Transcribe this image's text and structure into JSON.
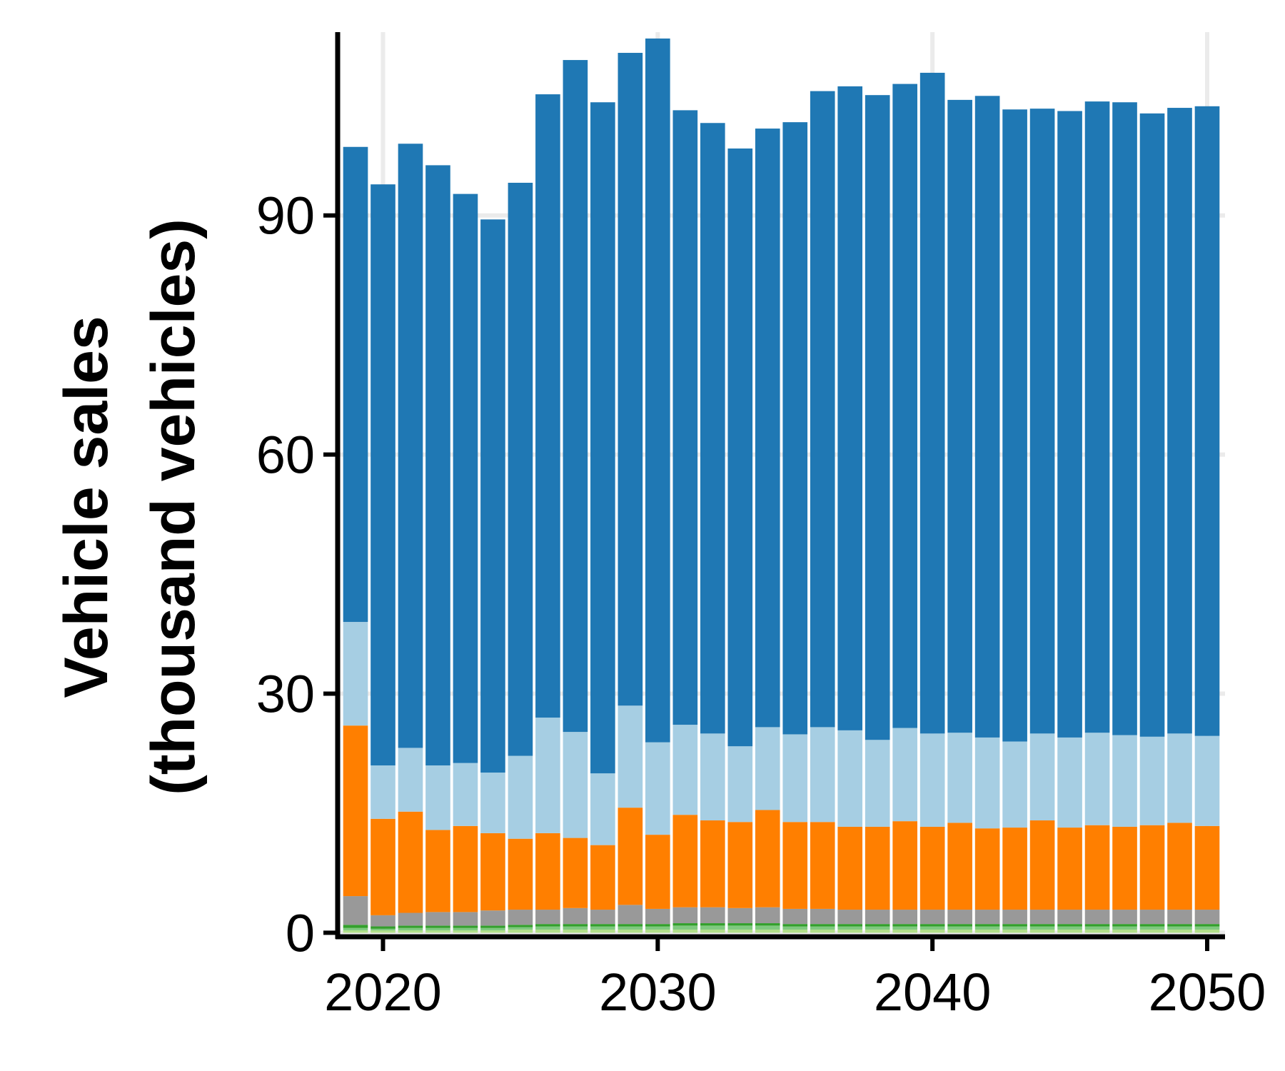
{
  "chart_data": {
    "type": "bar",
    "stacked": true,
    "title": "",
    "xlabel": "",
    "ylabel_lines": [
      "Vehicle sales",
      "(thousand vehicles)"
    ],
    "x": [
      2019,
      2020,
      2021,
      2022,
      2023,
      2024,
      2025,
      2026,
      2027,
      2028,
      2029,
      2030,
      2031,
      2032,
      2033,
      2034,
      2035,
      2036,
      2037,
      2038,
      2039,
      2040,
      2041,
      2042,
      2043,
      2044,
      2045,
      2046,
      2047,
      2048,
      2049,
      2050
    ],
    "xticks": [
      2020,
      2030,
      2040,
      2050
    ],
    "xlim": [
      2018.35,
      2050.65
    ],
    "yticks": [
      0,
      30,
      60,
      90
    ],
    "ylim": [
      -0.5,
      113
    ],
    "grid": true,
    "legend": "none",
    "series": [
      {
        "color": "#b2df8a",
        "values": [
          0.3,
          0.3,
          0.3,
          0.3,
          0.3,
          0.3,
          0.4,
          0.4,
          0.4,
          0.4,
          0.4,
          0.4,
          0.4,
          0.4,
          0.4,
          0.4,
          0.4,
          0.4,
          0.4,
          0.4,
          0.4,
          0.4,
          0.4,
          0.4,
          0.4,
          0.4,
          0.4,
          0.4,
          0.4,
          0.4,
          0.4,
          0.4
        ]
      },
      {
        "color": "#7fc97f",
        "values": [
          0.3,
          0.2,
          0.3,
          0.3,
          0.3,
          0.3,
          0.3,
          0.4,
          0.4,
          0.4,
          0.4,
          0.4,
          0.5,
          0.5,
          0.5,
          0.5,
          0.4,
          0.4,
          0.4,
          0.4,
          0.4,
          0.4,
          0.4,
          0.4,
          0.4,
          0.4,
          0.4,
          0.4,
          0.4,
          0.4,
          0.4,
          0.4
        ]
      },
      {
        "color": "#33a02c",
        "values": [
          0.4,
          0.3,
          0.3,
          0.3,
          0.3,
          0.3,
          0.3,
          0.3,
          0.3,
          0.3,
          0.3,
          0.3,
          0.3,
          0.3,
          0.3,
          0.3,
          0.3,
          0.3,
          0.3,
          0.3,
          0.3,
          0.3,
          0.3,
          0.3,
          0.3,
          0.3,
          0.3,
          0.3,
          0.3,
          0.3,
          0.3,
          0.3
        ]
      },
      {
        "color": "#999999",
        "values": [
          3.6,
          1.4,
          1.6,
          1.7,
          1.7,
          1.9,
          1.9,
          1.8,
          2.0,
          1.8,
          2.4,
          1.9,
          2.0,
          2.0,
          1.9,
          2.0,
          1.9,
          1.9,
          1.8,
          1.8,
          1.8,
          1.8,
          1.8,
          1.8,
          1.8,
          1.8,
          1.8,
          1.8,
          1.8,
          1.8,
          1.8,
          1.8
        ]
      },
      {
        "color": "#ff7f00",
        "values": [
          21.4,
          12.1,
          12.7,
          10.3,
          10.8,
          9.7,
          8.9,
          9.6,
          8.8,
          8.1,
          12.2,
          9.3,
          11.6,
          10.9,
          10.8,
          12.2,
          10.9,
          10.9,
          10.4,
          10.4,
          11.1,
          10.4,
          10.9,
          10.2,
          10.3,
          11.2,
          10.3,
          10.6,
          10.4,
          10.6,
          10.9,
          10.5
        ]
      },
      {
        "color": "#a6cee3",
        "values": [
          13.0,
          6.7,
          8.0,
          8.1,
          7.9,
          7.6,
          10.4,
          14.5,
          13.3,
          9.0,
          12.8,
          11.6,
          11.3,
          10.9,
          9.5,
          10.4,
          11.0,
          11.9,
          12.1,
          10.9,
          11.7,
          11.7,
          11.3,
          11.4,
          10.8,
          10.9,
          11.3,
          11.6,
          11.5,
          11.1,
          11.2,
          11.3
        ]
      },
      {
        "color": "#1f78b4",
        "values": [
          59.6,
          72.9,
          75.8,
          75.3,
          71.4,
          69.4,
          71.9,
          78.2,
          84.3,
          84.2,
          81.9,
          88.3,
          77.1,
          76.6,
          75.0,
          75.1,
          76.8,
          79.8,
          80.8,
          80.9,
          80.8,
          82.9,
          79.4,
          80.5,
          79.3,
          78.4,
          78.6,
          79.2,
          79.4,
          78.2,
          78.5,
          79.0
        ]
      }
    ]
  }
}
